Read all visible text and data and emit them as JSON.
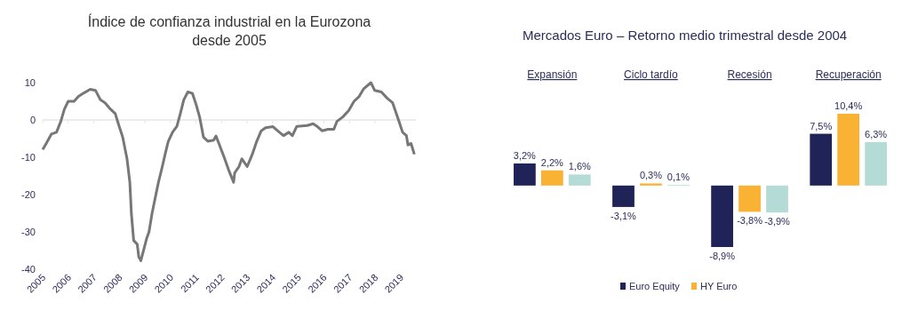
{
  "chart_data": [
    {
      "type": "line",
      "title": "Índice de confianza industrial en la Eurozona desde 2005",
      "xlim": [
        2005,
        2019.6
      ],
      "xticks": [
        2005,
        2006,
        2007,
        2008,
        2009,
        2010,
        2011,
        2012,
        2013,
        2014,
        2015,
        2016,
        2017,
        2018,
        2019
      ],
      "ylim": [
        -40,
        10
      ],
      "yticks": [
        -40,
        -30,
        -20,
        -10,
        0,
        10
      ],
      "ref_lines": [
        {
          "axis": "y",
          "value": 0,
          "color": "#e6e6e6"
        }
      ],
      "legend": false,
      "marker": "none",
      "line_style": "solid",
      "series": [
        {
          "color": "#777777",
          "x": [
            2005.0,
            2005.14,
            2005.34,
            2005.54,
            2005.71,
            2005.85,
            2006.0,
            2006.23,
            2006.4,
            2006.63,
            2006.86,
            2007.07,
            2007.26,
            2007.44,
            2007.61,
            2007.84,
            2007.95,
            2008.13,
            2008.3,
            2008.41,
            2008.47,
            2008.56,
            2008.7,
            2008.76,
            2008.84,
            2008.93,
            2009.07,
            2009.16,
            2009.28,
            2009.39,
            2009.53,
            2009.68,
            2009.79,
            2009.91,
            2010.08,
            2010.25,
            2010.37,
            2010.52,
            2010.68,
            2010.86,
            2011.0,
            2011.14,
            2011.29,
            2011.46,
            2011.69,
            2011.78,
            2012.1,
            2012.27,
            2012.47,
            2012.51,
            2012.68,
            2012.79,
            2013.0,
            2013.2,
            2013.37,
            2013.55,
            2013.72,
            2014.01,
            2014.19,
            2014.42,
            2014.63,
            2014.77,
            2014.94,
            2015.35,
            2015.58,
            2015.75,
            2015.93,
            2016.16,
            2016.39,
            2016.51,
            2016.74,
            2016.97,
            2017.18,
            2017.38,
            2017.55,
            2017.84,
            2017.99,
            2018.25,
            2018.48,
            2018.69,
            2018.92,
            2019.08,
            2019.23,
            2019.29,
            2019.41,
            2019.54
          ],
          "values": [
            -7.9,
            -6.3,
            -3.8,
            -3.3,
            -0.4,
            2.9,
            5.0,
            5.0,
            6.3,
            7.3,
            8.2,
            7.9,
            5.4,
            4.6,
            3.2,
            1.7,
            -0.8,
            -4.6,
            -10.4,
            -16.7,
            -25,
            -32.3,
            -33.3,
            -36.7,
            -37.7,
            -35.4,
            -31.7,
            -30,
            -25,
            -21.3,
            -16.7,
            -12.5,
            -9.2,
            -5.8,
            -3.3,
            -1.7,
            1.3,
            5.4,
            7.5,
            7.1,
            4.2,
            0.8,
            -4.6,
            -5.7,
            -5.4,
            -4.3,
            -10,
            -13.3,
            -16.7,
            -14.2,
            -12.5,
            -10.4,
            -12.5,
            -9.2,
            -5.8,
            -2.9,
            -2.1,
            -1.8,
            -2.9,
            -4.2,
            -3.3,
            -4.2,
            -1.7,
            -1.5,
            -1.0,
            -1.8,
            -2.9,
            -2.5,
            -2.5,
            -0.4,
            0.8,
            2.5,
            5.0,
            6.3,
            8.3,
            10,
            7.9,
            7.5,
            5.8,
            4.6,
            0,
            -3.3,
            -4.2,
            -6.7,
            -6.3,
            -9.2
          ]
        }
      ]
    },
    {
      "type": "bar",
      "title": "Mercados Euro – Retorno medio trimestral desde 2004",
      "categories": [
        "Expansión",
        "Ciclo tardío",
        "Recesión",
        "Recuperación"
      ],
      "legend": "bottom",
      "series": [
        {
          "name": "Euro Equity",
          "color": "#1f2357",
          "values": [
            3.2,
            -3.1,
            -8.9,
            7.5
          ],
          "value_labels": [
            "3,2%",
            "-3,1%",
            "-8,9%",
            "7,5%"
          ]
        },
        {
          "name": "HY Euro",
          "color": "#f9b234",
          "values": [
            2.2,
            0.3,
            -3.8,
            10.4
          ],
          "value_labels": [
            "2,2%",
            "0,3%",
            "-3,8%",
            "10,4%"
          ]
        },
        {
          "color": "#b5dbd6",
          "values": [
            1.6,
            0.1,
            -3.9,
            6.3
          ],
          "value_labels": [
            "1,6%",
            "0,1%",
            "-3,9%",
            "6,3%"
          ]
        }
      ]
    }
  ]
}
